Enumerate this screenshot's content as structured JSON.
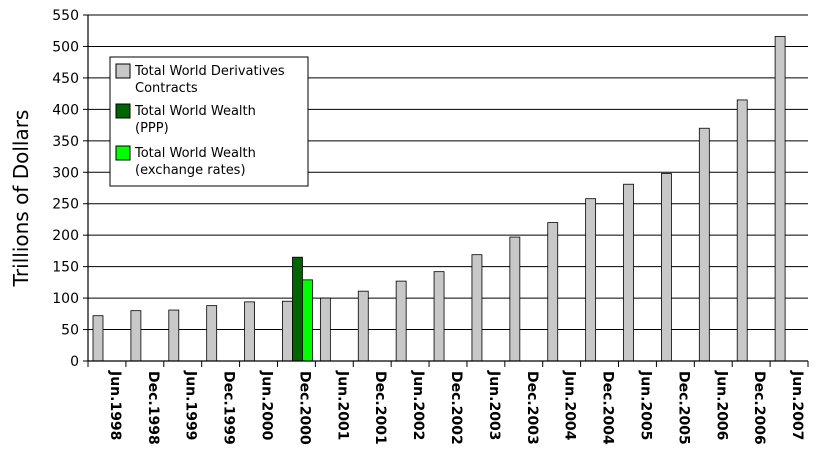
{
  "chart_data": {
    "type": "bar",
    "title": "",
    "xlabel": "",
    "ylabel": "Trillions of Dollars",
    "ylim": [
      0,
      550
    ],
    "yticks": [
      0,
      50,
      100,
      150,
      200,
      250,
      300,
      350,
      400,
      450,
      500,
      550
    ],
    "grid": true,
    "legend_position": "top-left",
    "categories": [
      "Jun.1998",
      "Dec.1998",
      "Jun.1999",
      "Dec.1999",
      "Jun.2000",
      "Dec.2000",
      "Jun.2001",
      "Dec.2001",
      "Jun.2002",
      "Dec.2002",
      "Jun.2003",
      "Dec.2003",
      "Jun.2004",
      "Dec.2004",
      "Jun.2005",
      "Dec.2005",
      "Jun.2006",
      "Dec.2006",
      "Jun.2007"
    ],
    "series": [
      {
        "name": "Total World Derivatives Contracts",
        "legend_lines": [
          "Total World Derivatives",
          "Contracts"
        ],
        "color": "#c8c8c8",
        "values": [
          72,
          80,
          81,
          88,
          94,
          95,
          100,
          111,
          127,
          142,
          169,
          197,
          220,
          258,
          281,
          298,
          370,
          415,
          516
        ]
      },
      {
        "name": "Total World Wealth (PPP)",
        "legend_lines": [
          "Total World Wealth",
          "(PPP)"
        ],
        "color": "#006400",
        "values": [
          null,
          null,
          null,
          null,
          null,
          165,
          null,
          null,
          null,
          null,
          null,
          null,
          null,
          null,
          null,
          null,
          null,
          null,
          null
        ]
      },
      {
        "name": "Total World Wealth (exchange rates)",
        "legend_lines": [
          "Total World Wealth",
          "(exchange rates)"
        ],
        "color": "#00ff00",
        "values": [
          null,
          null,
          null,
          null,
          null,
          129,
          null,
          null,
          null,
          null,
          null,
          null,
          null,
          null,
          null,
          null,
          null,
          null,
          null
        ]
      }
    ]
  }
}
